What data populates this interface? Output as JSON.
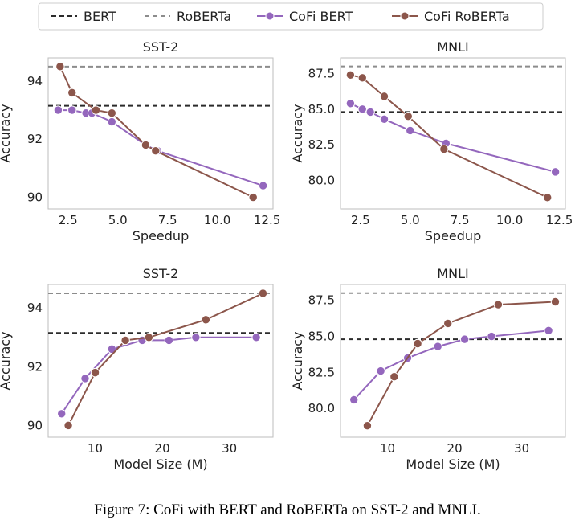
{
  "legend": {
    "placement": "top-center",
    "items": [
      {
        "label": "BERT",
        "style": "dashed",
        "color": "#2b2b2b"
      },
      {
        "label": "RoBERTa",
        "style": "dashed",
        "color": "#8c8c8c"
      },
      {
        "label": "CoFi BERT",
        "style": "line-marker",
        "color": "#9467bd"
      },
      {
        "label": "CoFi RoBERTa",
        "style": "line-marker",
        "color": "#8c564b"
      }
    ]
  },
  "caption": "Figure 7: CoFi with BERT and RoBERTa on SST-2 and MNLI.",
  "chart_data": [
    {
      "type": "line",
      "title": "SST-2",
      "xlabel": "Speedup",
      "ylabel": "Accuracy",
      "xlim": [
        1.5,
        12.8
      ],
      "ylim": [
        89.6,
        94.8
      ],
      "xticks": [
        2.5,
        5.0,
        7.5,
        10.0,
        12.5
      ],
      "xtick_labels": [
        "2.5",
        "5.0",
        "7.5",
        "10.0",
        "12.5"
      ],
      "yticks": [
        90,
        92,
        94
      ],
      "ytick_labels": [
        "90",
        "92",
        "94"
      ],
      "grid": false,
      "hlines": [
        {
          "name": "BERT",
          "y": 93.15,
          "color": "#2b2b2b"
        },
        {
          "name": "RoBERTa",
          "y": 94.5,
          "color": "#8c8c8c"
        }
      ],
      "series": [
        {
          "name": "CoFi BERT",
          "color": "#9467bd",
          "x": [
            2.0,
            2.7,
            3.4,
            3.7,
            4.7,
            6.4,
            7.0,
            12.3
          ],
          "y": [
            93.0,
            93.0,
            92.9,
            92.9,
            92.6,
            91.8,
            91.6,
            90.4
          ]
        },
        {
          "name": "CoFi RoBERTa",
          "color": "#8c564b",
          "x": [
            2.1,
            2.7,
            3.9,
            4.7,
            6.4,
            6.9,
            11.8
          ],
          "y": [
            94.5,
            93.6,
            93.0,
            92.9,
            91.8,
            91.6,
            90.0
          ]
        }
      ]
    },
    {
      "type": "line",
      "title": "MNLI",
      "xlabel": "Speedup",
      "ylabel": "Accuracy",
      "xlim": [
        1.5,
        12.8
      ],
      "ylim": [
        78.0,
        88.6
      ],
      "xticks": [
        2.5,
        5.0,
        7.5,
        10.0,
        12.5
      ],
      "xtick_labels": [
        "2.5",
        "5.0",
        "7.5",
        "10.0",
        "12.5"
      ],
      "yticks": [
        80.0,
        82.5,
        85.0,
        87.5
      ],
      "ytick_labels": [
        "80.0",
        "82.5",
        "85.0",
        "87.5"
      ],
      "grid": false,
      "hlines": [
        {
          "name": "BERT",
          "y": 84.8,
          "color": "#2b2b2b"
        },
        {
          "name": "RoBERTa",
          "y": 88.0,
          "color": "#8c8c8c"
        }
      ],
      "series": [
        {
          "name": "CoFi BERT",
          "color": "#9467bd",
          "x": [
            2.0,
            2.6,
            3.0,
            3.7,
            5.0,
            6.8,
            12.3
          ],
          "y": [
            85.4,
            85.0,
            84.8,
            84.3,
            83.5,
            82.6,
            80.6
          ]
        },
        {
          "name": "CoFi RoBERTa",
          "color": "#8c564b",
          "x": [
            2.0,
            2.6,
            3.7,
            4.9,
            6.7,
            11.9
          ],
          "y": [
            87.4,
            87.2,
            85.9,
            84.5,
            82.2,
            78.8
          ]
        }
      ]
    },
    {
      "type": "line",
      "title": "SST-2",
      "xlabel": "Model Size (M)",
      "ylabel": "Accuracy",
      "xlim": [
        3.0,
        36.5
      ],
      "ylim": [
        89.6,
        94.8
      ],
      "xticks": [
        10,
        20,
        30
      ],
      "xtick_labels": [
        "10",
        "20",
        "30"
      ],
      "yticks": [
        90,
        92,
        94
      ],
      "ytick_labels": [
        "90",
        "92",
        "94"
      ],
      "grid": false,
      "hlines": [
        {
          "name": "BERT",
          "y": 93.15,
          "color": "#2b2b2b"
        },
        {
          "name": "RoBERTa",
          "y": 94.5,
          "color": "#8c8c8c"
        }
      ],
      "series": [
        {
          "name": "CoFi BERT",
          "color": "#9467bd",
          "x": [
            5.0,
            8.5,
            12.5,
            17.0,
            21.0,
            25.0,
            34.0
          ],
          "y": [
            90.4,
            91.6,
            92.6,
            92.9,
            92.9,
            93.0,
            93.0
          ]
        },
        {
          "name": "CoFi RoBERTa",
          "color": "#8c564b",
          "x": [
            6.0,
            10.0,
            14.5,
            18.0,
            26.5,
            35.0
          ],
          "y": [
            90.0,
            91.8,
            92.9,
            93.0,
            93.6,
            94.5
          ]
        }
      ]
    },
    {
      "type": "line",
      "title": "MNLI",
      "xlabel": "Model Size (M)",
      "ylabel": "Accuracy",
      "xlim": [
        3.0,
        36.5
      ],
      "ylim": [
        78.0,
        88.6
      ],
      "xticks": [
        10,
        20,
        30
      ],
      "xtick_labels": [
        "10",
        "20",
        "30"
      ],
      "yticks": [
        80.0,
        82.5,
        85.0,
        87.5
      ],
      "ytick_labels": [
        "80.0",
        "82.5",
        "85.0",
        "87.5"
      ],
      "grid": false,
      "hlines": [
        {
          "name": "BERT",
          "y": 84.8,
          "color": "#2b2b2b"
        },
        {
          "name": "RoBERTa",
          "y": 88.0,
          "color": "#8c8c8c"
        }
      ],
      "series": [
        {
          "name": "CoFi BERT",
          "color": "#9467bd",
          "x": [
            5.0,
            9.0,
            13.0,
            17.5,
            21.5,
            25.5,
            34.0
          ],
          "y": [
            80.6,
            82.6,
            83.5,
            84.3,
            84.8,
            85.0,
            85.4
          ]
        },
        {
          "name": "CoFi RoBERTa",
          "color": "#8c564b",
          "x": [
            7.0,
            11.0,
            14.5,
            19.0,
            26.5,
            35.0
          ],
          "y": [
            78.8,
            82.2,
            84.5,
            85.9,
            87.2,
            87.4
          ]
        }
      ]
    }
  ]
}
